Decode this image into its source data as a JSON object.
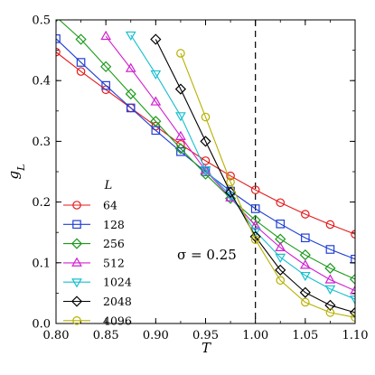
{
  "chart_data": {
    "type": "line",
    "xlabel": "T",
    "ylabel": "g_L",
    "xlim": [
      0.8,
      1.1
    ],
    "ylim": [
      0.0,
      0.5
    ],
    "xticks": [
      "0.80",
      "0.85",
      "0.90",
      "0.95",
      "1.00",
      "1.05",
      "1.10"
    ],
    "yticks": [
      "0.0",
      "0.1",
      "0.2",
      "0.3",
      "0.4",
      "0.5"
    ],
    "grid": false,
    "legend_title": "L",
    "legend_position": "lower-left",
    "vline": {
      "x": 1.0,
      "style": "dashed"
    },
    "annotation": {
      "text": "σ = 0.25",
      "x": 0.965,
      "y": 0.12
    },
    "series": [
      {
        "name": "64",
        "color": "#e41a1c",
        "marker": "circle",
        "x": [
          0.8,
          0.825,
          0.85,
          0.875,
          0.9,
          0.925,
          0.95,
          0.975,
          1.0,
          1.025,
          1.05,
          1.075,
          1.1
        ],
        "y": [
          0.447,
          0.415,
          0.385,
          0.355,
          0.325,
          0.295,
          0.268,
          0.243,
          0.22,
          0.199,
          0.18,
          0.163,
          0.147
        ]
      },
      {
        "name": "128",
        "color": "#1f3fd6",
        "marker": "square",
        "x": [
          0.8,
          0.825,
          0.85,
          0.875,
          0.9,
          0.925,
          0.95,
          0.975,
          1.0,
          1.025,
          1.05,
          1.075,
          1.1
        ],
        "y": [
          0.469,
          0.43,
          0.392,
          0.355,
          0.318,
          0.283,
          0.25,
          0.218,
          0.189,
          0.164,
          0.141,
          0.122,
          0.106
        ]
      },
      {
        "name": "256",
        "color": "#1a9a1a",
        "marker": "diamond",
        "x": [
          0.8,
          0.825,
          0.85,
          0.875,
          0.9,
          0.925,
          0.95,
          0.975,
          1.0,
          1.025,
          1.05,
          1.075,
          1.1
        ],
        "y": [
          0.505,
          0.468,
          0.423,
          0.378,
          0.333,
          0.288,
          0.246,
          0.206,
          0.17,
          0.139,
          0.113,
          0.091,
          0.073
        ]
      },
      {
        "name": "512",
        "color": "#d020d0",
        "marker": "triangle-up",
        "x": [
          0.85,
          0.875,
          0.9,
          0.925,
          0.95,
          0.975,
          1.0,
          1.025,
          1.05,
          1.075,
          1.1
        ],
        "y": [
          0.473,
          0.42,
          0.365,
          0.308,
          0.252,
          0.207,
          0.161,
          0.125,
          0.096,
          0.072,
          0.054
        ]
      },
      {
        "name": "1024",
        "color": "#17bfcf",
        "marker": "triangle-down",
        "x": [
          0.875,
          0.9,
          0.925,
          0.95,
          0.975,
          1.0,
          1.025,
          1.05,
          1.075,
          1.1
        ],
        "y": [
          0.475,
          0.411,
          0.342,
          0.253,
          0.211,
          0.152,
          0.109,
          0.079,
          0.057,
          0.04
        ]
      },
      {
        "name": "2048",
        "color": "#000000",
        "marker": "diamond",
        "x": [
          0.9,
          0.925,
          0.95,
          0.975,
          1.0,
          1.025,
          1.05,
          1.075,
          1.1
        ],
        "y": [
          0.468,
          0.386,
          0.3,
          0.216,
          0.143,
          0.088,
          0.051,
          0.03,
          0.018
        ]
      },
      {
        "name": "4096",
        "color": "#b8b000",
        "marker": "circle",
        "x": [
          0.925,
          0.95,
          0.975,
          1.0,
          1.025,
          1.05,
          1.075,
          1.1
        ],
        "y": [
          0.445,
          0.34,
          0.233,
          0.138,
          0.071,
          0.035,
          0.018,
          0.01
        ]
      }
    ]
  }
}
